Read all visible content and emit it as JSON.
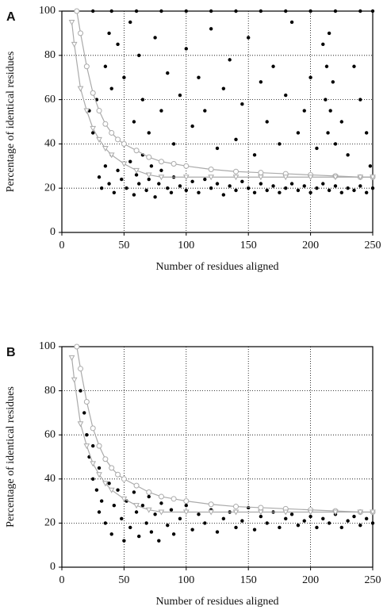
{
  "chart_data": [
    {
      "type": "scatter",
      "panel_label": "A",
      "x_label": "Number of residues aligned",
      "y_label": "Percentage of identical residues",
      "xlim": [
        0,
        250
      ],
      "ylim": [
        0,
        100
      ],
      "xticks": [
        0,
        50,
        100,
        150,
        200,
        250
      ],
      "yticks": [
        0,
        20,
        40,
        60,
        80,
        100
      ],
      "grid": true,
      "series": [
        {
          "color": "#000000",
          "marker": "dot",
          "x": [
            30,
            32,
            35,
            38,
            40,
            42,
            45,
            48,
            50,
            52,
            55,
            58,
            60,
            62,
            65,
            68,
            70,
            72,
            75,
            78,
            80,
            85,
            88,
            90,
            95,
            100,
            105,
            110,
            115,
            120,
            125,
            130,
            135,
            140,
            145,
            150,
            155,
            160,
            165,
            170,
            175,
            180,
            185,
            190,
            195,
            200,
            205,
            210,
            215,
            220,
            225,
            230,
            235,
            240,
            245,
            250,
            22,
            25,
            28,
            35,
            38,
            40,
            45,
            50,
            55,
            58,
            62,
            65,
            70,
            75,
            80,
            85,
            90,
            95,
            100,
            105,
            110,
            115,
            120,
            125,
            130,
            135,
            140,
            145,
            150,
            155,
            160,
            165,
            170,
            175,
            180,
            185,
            190,
            195,
            200,
            205,
            210,
            212,
            213,
            214,
            215,
            216,
            218,
            220,
            225,
            230,
            235,
            240,
            245,
            248,
            25,
            40,
            60,
            80,
            100,
            120,
            140,
            160,
            180,
            200,
            220,
            240,
            250
          ],
          "y": [
            25,
            20,
            30,
            22,
            35,
            18,
            28,
            24,
            40,
            20,
            32,
            17,
            26,
            22,
            35,
            19,
            24,
            30,
            16,
            22,
            28,
            20,
            18,
            25,
            21,
            19,
            23,
            18,
            24,
            20,
            22,
            17,
            21,
            19,
            23,
            20,
            18,
            22,
            19,
            21,
            18,
            20,
            22,
            19,
            21,
            18,
            20,
            22,
            19,
            21,
            18,
            20,
            19,
            21,
            18,
            20,
            55,
            45,
            60,
            75,
            90,
            65,
            85,
            70,
            95,
            50,
            80,
            60,
            45,
            88,
            55,
            72,
            40,
            62,
            83,
            48,
            70,
            55,
            92,
            38,
            65,
            78,
            42,
            58,
            88,
            35,
            68,
            50,
            75,
            40,
            62,
            95,
            45,
            55,
            70,
            38,
            85,
            60,
            75,
            45,
            90,
            55,
            68,
            40,
            50,
            35,
            75,
            60,
            45,
            30,
            100,
            100,
            100,
            100,
            100,
            100,
            100,
            100,
            100,
            100,
            100,
            100,
            100
          ]
        },
        {
          "color": "#aaaaaa",
          "marker": "circle",
          "line": true,
          "x": [
            12,
            15,
            20,
            25,
            30,
            35,
            40,
            45,
            50,
            60,
            70,
            80,
            90,
            100,
            120,
            140,
            160,
            180,
            200,
            220,
            240,
            250
          ],
          "y": [
            100,
            90,
            75,
            63,
            55,
            49,
            45,
            42,
            40,
            37,
            34,
            32,
            31,
            30,
            28.5,
            27.5,
            27,
            26.5,
            26,
            25.5,
            25,
            25
          ]
        },
        {
          "color": "#aaaaaa",
          "marker": "triangle",
          "line": true,
          "x": [
            8,
            10,
            15,
            20,
            25,
            30,
            35,
            40,
            50,
            60,
            70,
            80,
            100,
            120,
            140,
            160,
            180,
            200,
            220,
            240,
            250
          ],
          "y": [
            95,
            85,
            65,
            55,
            47,
            42,
            38,
            35,
            31,
            28,
            26,
            25,
            25,
            25,
            25,
            25,
            25,
            25,
            25,
            25,
            25
          ]
        }
      ]
    },
    {
      "type": "scatter",
      "panel_label": "B",
      "x_label": "Number of residues aligned",
      "y_label": "Percentage of identical residues",
      "xlim": [
        0,
        250
      ],
      "ylim": [
        0,
        100
      ],
      "xticks": [
        0,
        50,
        100,
        150,
        200,
        250
      ],
      "yticks": [
        0,
        20,
        40,
        60,
        80,
        100
      ],
      "grid": true,
      "series": [
        {
          "color": "#000000",
          "marker": "dot",
          "x": [
            15,
            18,
            20,
            22,
            25,
            25,
            28,
            30,
            30,
            32,
            35,
            38,
            40,
            42,
            45,
            48,
            50,
            52,
            55,
            58,
            60,
            62,
            65,
            68,
            70,
            72,
            75,
            78,
            80,
            85,
            88,
            90,
            95,
            100,
            105,
            110,
            115,
            120,
            125,
            130,
            135,
            140,
            145,
            150,
            155,
            160,
            165,
            170,
            175,
            180,
            185,
            190,
            195,
            200,
            205,
            210,
            215,
            220,
            225,
            230,
            235,
            240,
            245,
            250
          ],
          "y": [
            80,
            70,
            60,
            50,
            55,
            40,
            35,
            45,
            25,
            30,
            20,
            38,
            15,
            28,
            35,
            22,
            12,
            30,
            18,
            34,
            25,
            14,
            28,
            20,
            32,
            16,
            24,
            12,
            29,
            19,
            26,
            15,
            22,
            28,
            17,
            24,
            20,
            26,
            16,
            22,
            25,
            18,
            21,
            27,
            17,
            23,
            20,
            25,
            18,
            22,
            24,
            19,
            21,
            23,
            18,
            22,
            20,
            24,
            18,
            21,
            23,
            19,
            22,
            20
          ]
        },
        {
          "color": "#aaaaaa",
          "marker": "circle",
          "line": true,
          "x": [
            12,
            15,
            20,
            25,
            30,
            35,
            40,
            45,
            50,
            60,
            70,
            80,
            90,
            100,
            120,
            140,
            160,
            180,
            200,
            220,
            240,
            250
          ],
          "y": [
            100,
            90,
            75,
            63,
            55,
            49,
            45,
            42,
            40,
            37,
            34,
            32,
            31,
            30,
            28.5,
            27.5,
            27,
            26.5,
            26,
            25.5,
            25,
            25
          ]
        },
        {
          "color": "#aaaaaa",
          "marker": "triangle",
          "line": true,
          "x": [
            8,
            10,
            15,
            20,
            25,
            30,
            35,
            40,
            50,
            60,
            70,
            80,
            100,
            120,
            140,
            160,
            180,
            200,
            220,
            240,
            250
          ],
          "y": [
            95,
            85,
            65,
            55,
            47,
            42,
            38,
            35,
            31,
            28,
            26,
            25,
            25,
            25,
            25,
            25,
            25,
            25,
            25,
            25,
            25
          ]
        }
      ]
    }
  ]
}
